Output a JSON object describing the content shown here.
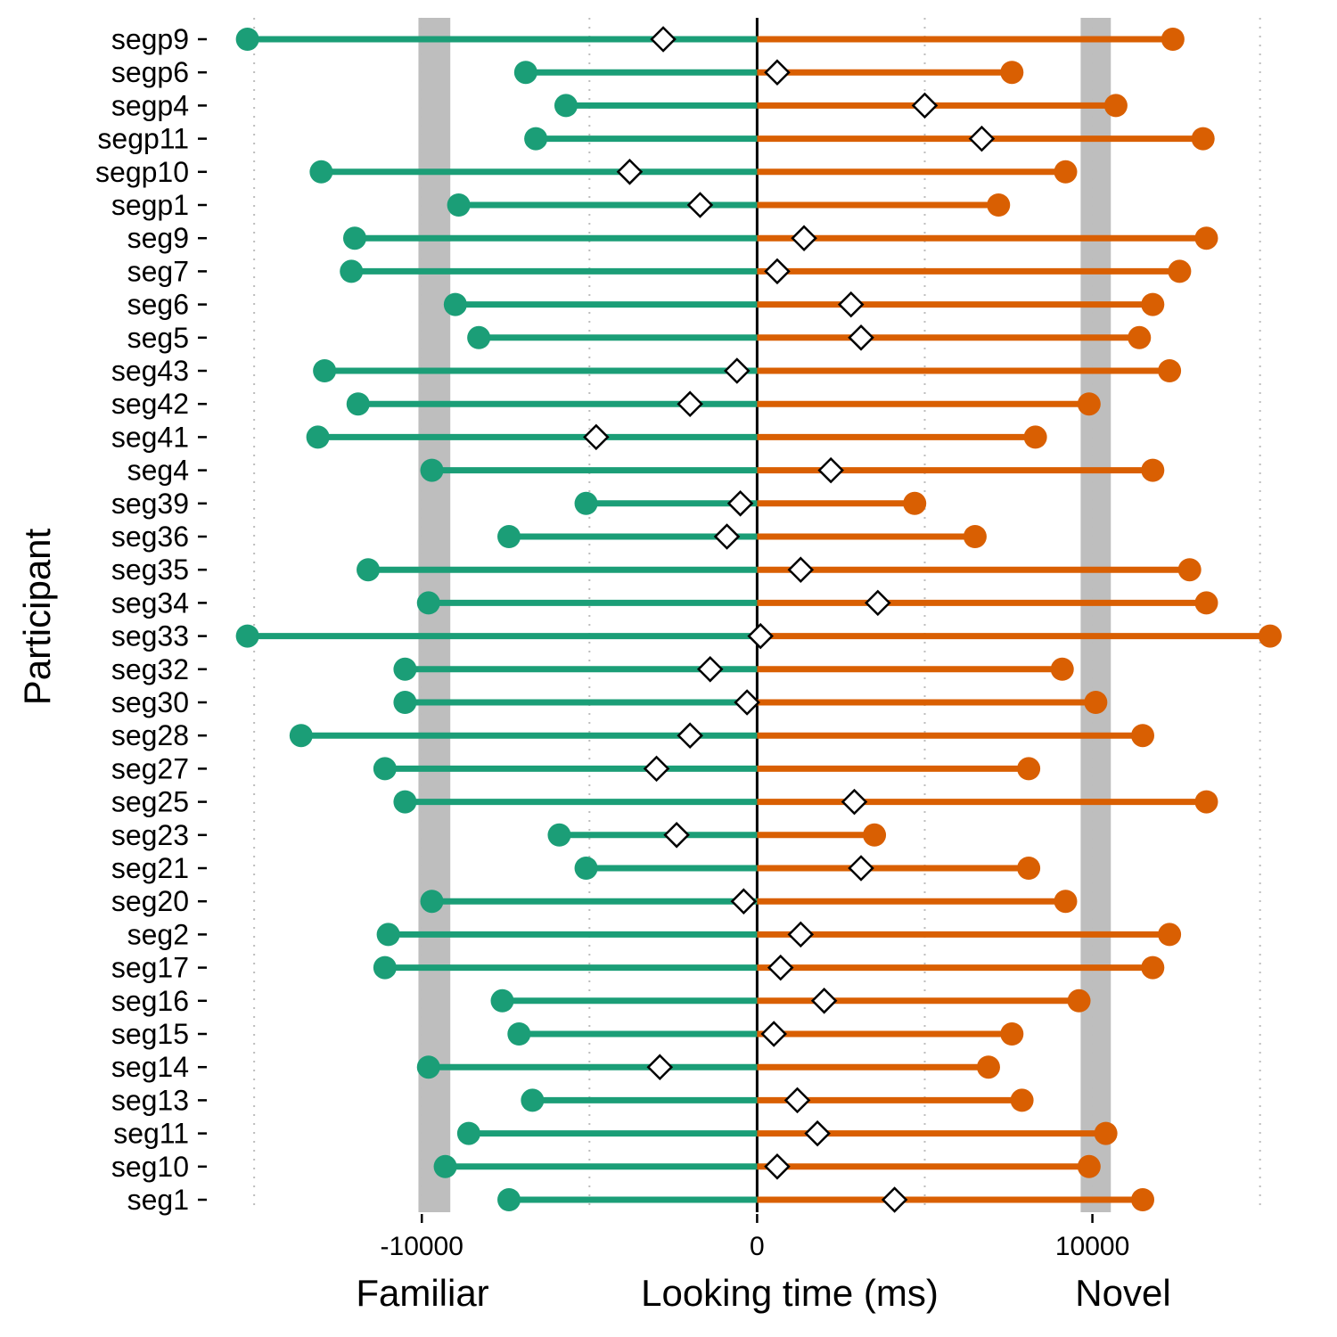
{
  "chart_data": {
    "type": "dumbbell",
    "xlabel": "Looking time (ms)",
    "xlabel_left": "Familiar",
    "xlabel_right": "Novel",
    "ylabel": "Participant",
    "xlim": [
      -16200,
      15700
    ],
    "xticks": [
      -10000,
      0,
      10000
    ],
    "xtick_labels": [
      "-10000",
      "0",
      "10000"
    ],
    "minor_gridlines": [
      -15000,
      -10000,
      -5000,
      5000,
      10000,
      15000
    ],
    "shaded_bands": [
      [
        -10100,
        -9150
      ],
      [
        9650,
        10550
      ]
    ],
    "colors": {
      "familiar": "#1b9e77",
      "novel": "#d95f02",
      "difference": "#ffffff",
      "zero_line": "#000000",
      "band": "#bebebe",
      "grid": "#bdbdbd"
    },
    "series": [
      {
        "key": "familiar",
        "values": [
          -15200,
          -6900,
          -5700,
          -6600,
          -13000,
          -8900,
          -12000,
          -12100,
          -9000,
          -8300,
          -12900,
          -11900,
          -13100,
          -9700,
          -5100,
          -7400,
          -11600,
          -9800,
          -15200,
          -10500,
          -10500,
          -13600,
          -11100,
          -10500,
          -5900,
          -5100,
          -9700,
          -11000,
          -11100,
          -7600,
          -7100,
          -9800,
          -6700,
          -8600,
          -9300,
          -7400
        ]
      },
      {
        "key": "novel",
        "values": [
          12400,
          7600,
          10700,
          13300,
          9200,
          7200,
          13400,
          12600,
          11800,
          11400,
          12300,
          9900,
          8300,
          11800,
          4700,
          6500,
          12900,
          13400,
          15300,
          9100,
          10100,
          11500,
          8100,
          13400,
          3500,
          8100,
          9200,
          12300,
          11800,
          9600,
          7600,
          6900,
          7900,
          10400,
          9900,
          11500
        ]
      },
      {
        "key": "difference",
        "values": [
          -2800,
          600,
          5000,
          6700,
          -3800,
          -1700,
          1400,
          600,
          2800,
          3100,
          -600,
          -2000,
          -4800,
          2200,
          -500,
          -900,
          1300,
          3600,
          100,
          -1400,
          -300,
          -2000,
          -3000,
          2900,
          -2400,
          3100,
          -400,
          1300,
          700,
          2000,
          500,
          -2900,
          1200,
          1800,
          600,
          4100
        ]
      }
    ],
    "categories": [
      "segp9",
      "segp6",
      "segp4",
      "segp11",
      "segp10",
      "segp1",
      "seg9",
      "seg7",
      "seg6",
      "seg5",
      "seg43",
      "seg42",
      "seg41",
      "seg4",
      "seg39",
      "seg36",
      "seg35",
      "seg34",
      "seg33",
      "seg32",
      "seg30",
      "seg28",
      "seg27",
      "seg25",
      "seg23",
      "seg21",
      "seg20",
      "seg2",
      "seg17",
      "seg16",
      "seg15",
      "seg14",
      "seg13",
      "seg11",
      "seg10",
      "seg1"
    ]
  }
}
